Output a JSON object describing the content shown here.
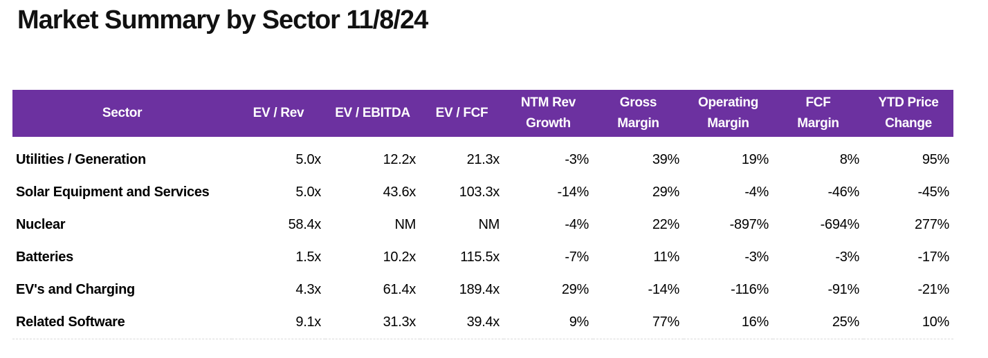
{
  "title": "Market Summary by Sector 11/8/24",
  "colors": {
    "header_bg": "#6C31A0",
    "header_text": "#FFFFFF",
    "body_text": "#000000",
    "background": "#FFFFFF",
    "bottom_rule": "#D9D9D9"
  },
  "table": {
    "columns": [
      {
        "id": "sector",
        "lines": [
          "Sector"
        ]
      },
      {
        "id": "ev-rev",
        "lines": [
          "EV / Rev"
        ]
      },
      {
        "id": "ev-ebitda",
        "lines": [
          "EV / EBITDA"
        ]
      },
      {
        "id": "ev-fcf",
        "lines": [
          "EV / FCF"
        ]
      },
      {
        "id": "ntm-rev-growth",
        "lines": [
          "NTM Rev",
          "Growth"
        ]
      },
      {
        "id": "gross-margin",
        "lines": [
          "Gross",
          "Margin"
        ]
      },
      {
        "id": "operating-margin",
        "lines": [
          "Operating",
          "Margin"
        ]
      },
      {
        "id": "fcf-margin",
        "lines": [
          "FCF",
          "Margin"
        ]
      },
      {
        "id": "ytd-price-change",
        "lines": [
          "YTD Price",
          "Change"
        ]
      }
    ],
    "rows": [
      {
        "sector": "Utilities / Generation",
        "values": [
          "5.0x",
          "12.2x",
          "21.3x",
          "-3%",
          "39%",
          "19%",
          "8%",
          "95%"
        ]
      },
      {
        "sector": "Solar Equipment and Services",
        "values": [
          "5.0x",
          "43.6x",
          "103.3x",
          "-14%",
          "29%",
          "-4%",
          "-46%",
          "-45%"
        ]
      },
      {
        "sector": "Nuclear",
        "values": [
          "58.4x",
          "NM",
          "NM",
          "-4%",
          "22%",
          "-897%",
          "-694%",
          "277%"
        ]
      },
      {
        "sector": "Batteries",
        "values": [
          "1.5x",
          "10.2x",
          "115.5x",
          "-7%",
          "11%",
          "-3%",
          "-3%",
          "-17%"
        ]
      },
      {
        "sector": "EV's and Charging",
        "values": [
          "4.3x",
          "61.4x",
          "189.4x",
          "29%",
          "-14%",
          "-116%",
          "-91%",
          "-21%"
        ]
      },
      {
        "sector": "Related Software",
        "values": [
          "9.1x",
          "31.3x",
          "39.4x",
          "9%",
          "77%",
          "16%",
          "25%",
          "10%"
        ]
      }
    ]
  },
  "chart_data": {
    "type": "table",
    "title": "Market Summary by Sector 11/8/24",
    "columns": [
      "Sector",
      "EV / Rev",
      "EV / EBITDA",
      "EV / FCF",
      "NTM Rev Growth",
      "Gross Margin",
      "Operating Margin",
      "FCF Margin",
      "YTD Price Change"
    ],
    "rows": [
      [
        "Utilities / Generation",
        "5.0x",
        "12.2x",
        "21.3x",
        "-3%",
        "39%",
        "19%",
        "8%",
        "95%"
      ],
      [
        "Solar Equipment and Services",
        "5.0x",
        "43.6x",
        "103.3x",
        "-14%",
        "29%",
        "-4%",
        "-46%",
        "-45%"
      ],
      [
        "Nuclear",
        "58.4x",
        "NM",
        "NM",
        "-4%",
        "22%",
        "-897%",
        "-694%",
        "277%"
      ],
      [
        "Batteries",
        "1.5x",
        "10.2x",
        "115.5x",
        "-7%",
        "11%",
        "-3%",
        "-3%",
        "-17%"
      ],
      [
        "EV's and Charging",
        "4.3x",
        "61.4x",
        "189.4x",
        "29%",
        "-14%",
        "-116%",
        "-91%",
        "-21%"
      ],
      [
        "Related Software",
        "9.1x",
        "31.3x",
        "39.4x",
        "9%",
        "77%",
        "16%",
        "25%",
        "10%"
      ]
    ]
  }
}
